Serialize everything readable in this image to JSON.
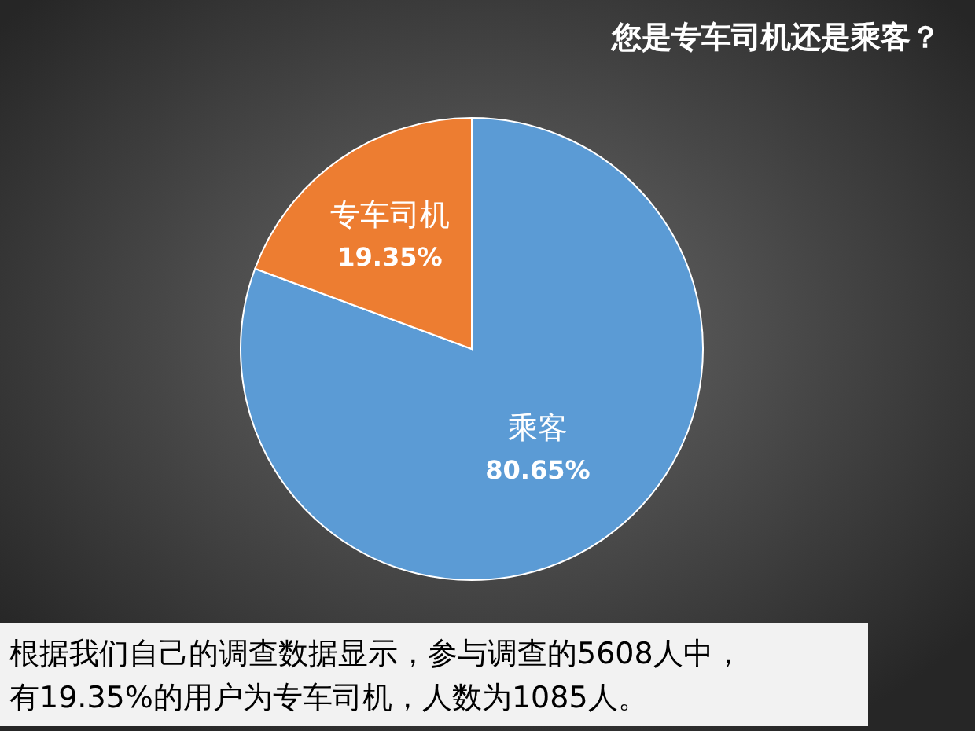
{
  "chart_data": {
    "type": "pie",
    "title": "您是专车司机还是乘客？",
    "categories": [
      "乘客",
      "专车司机"
    ],
    "values": [
      80.65,
      19.35
    ],
    "colors": [
      "#5b9bd5",
      "#ed7d31"
    ],
    "value_labels": [
      "80.65%",
      "19.35%"
    ],
    "legend": false,
    "annotations": [
      "根据我们自己的调查数据显示，参与调查的5608人中，有19.35%的用户为专车司机，人数为1085人。"
    ]
  }
}
